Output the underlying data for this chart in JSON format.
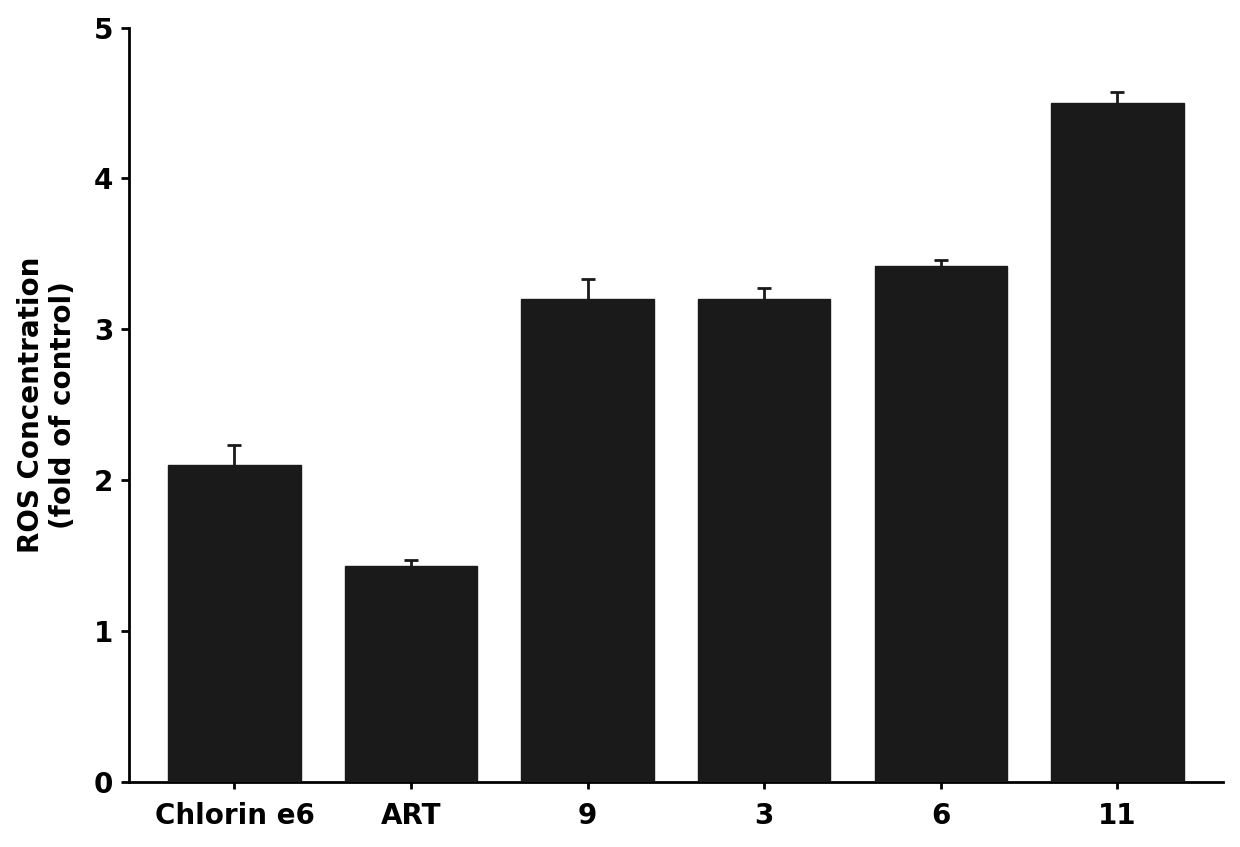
{
  "categories": [
    "Chlorin e6",
    "ART",
    "9",
    "3",
    "6",
    "11"
  ],
  "values": [
    2.1,
    1.43,
    3.2,
    3.2,
    3.42,
    4.5
  ],
  "errors": [
    0.13,
    0.04,
    0.13,
    0.07,
    0.04,
    0.07
  ],
  "bar_color": "#1a1a1a",
  "bar_edgecolor": "#1a1a1a",
  "bar_width": 0.75,
  "ylabel": "ROS Concentration\n(fold of control)",
  "ylim": [
    0,
    5
  ],
  "yticks": [
    0,
    1,
    2,
    3,
    4,
    5
  ],
  "background_color": "#ffffff",
  "ylabel_fontsize": 20,
  "tick_fontsize": 20,
  "error_capsize": 5,
  "error_linewidth": 2,
  "error_color": "#1a1a1a"
}
